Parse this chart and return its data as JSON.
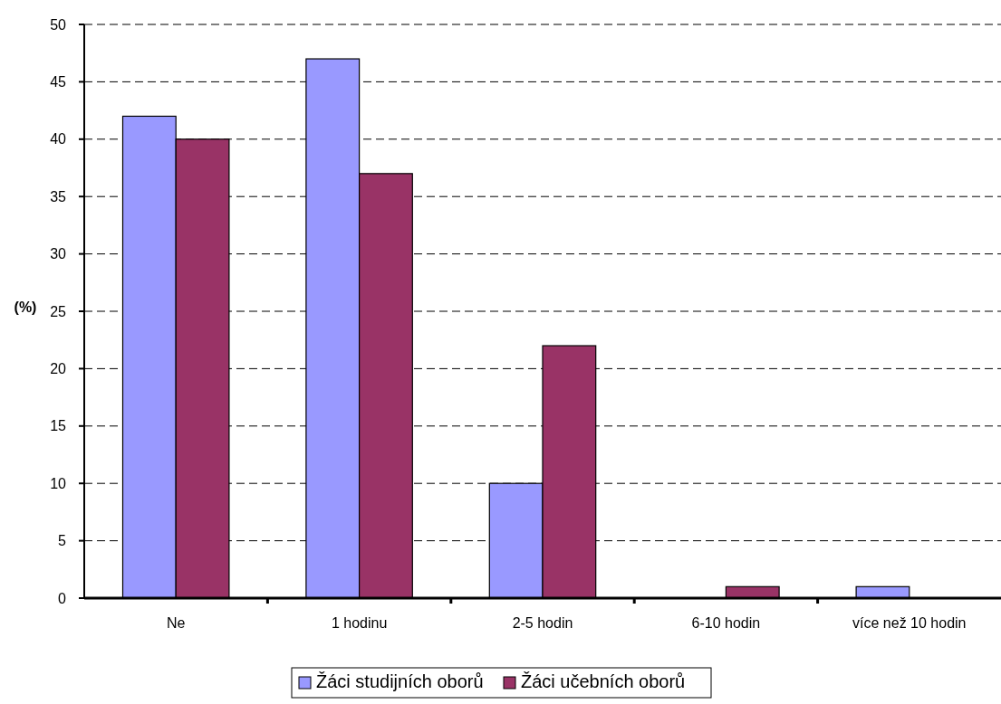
{
  "chart_data": {
    "type": "bar",
    "ylabel": "(%)",
    "categories": [
      "Ne",
      "1 hodinu",
      "2-5 hodin",
      "6-10 hodin",
      "více než 10 hodin"
    ],
    "series": [
      {
        "name": "Žáci studijních oborů",
        "color": "#9999ff",
        "values": [
          42,
          47,
          10,
          0,
          1
        ]
      },
      {
        "name": "Žáci učebních oborů",
        "color": "#993366",
        "values": [
          40,
          37,
          22,
          1,
          0
        ]
      }
    ],
    "ylim": [
      0,
      50
    ],
    "yticks": [
      0,
      5,
      10,
      15,
      20,
      25,
      30,
      35,
      40,
      45,
      50
    ],
    "grid": "y",
    "legend": "bottom"
  }
}
